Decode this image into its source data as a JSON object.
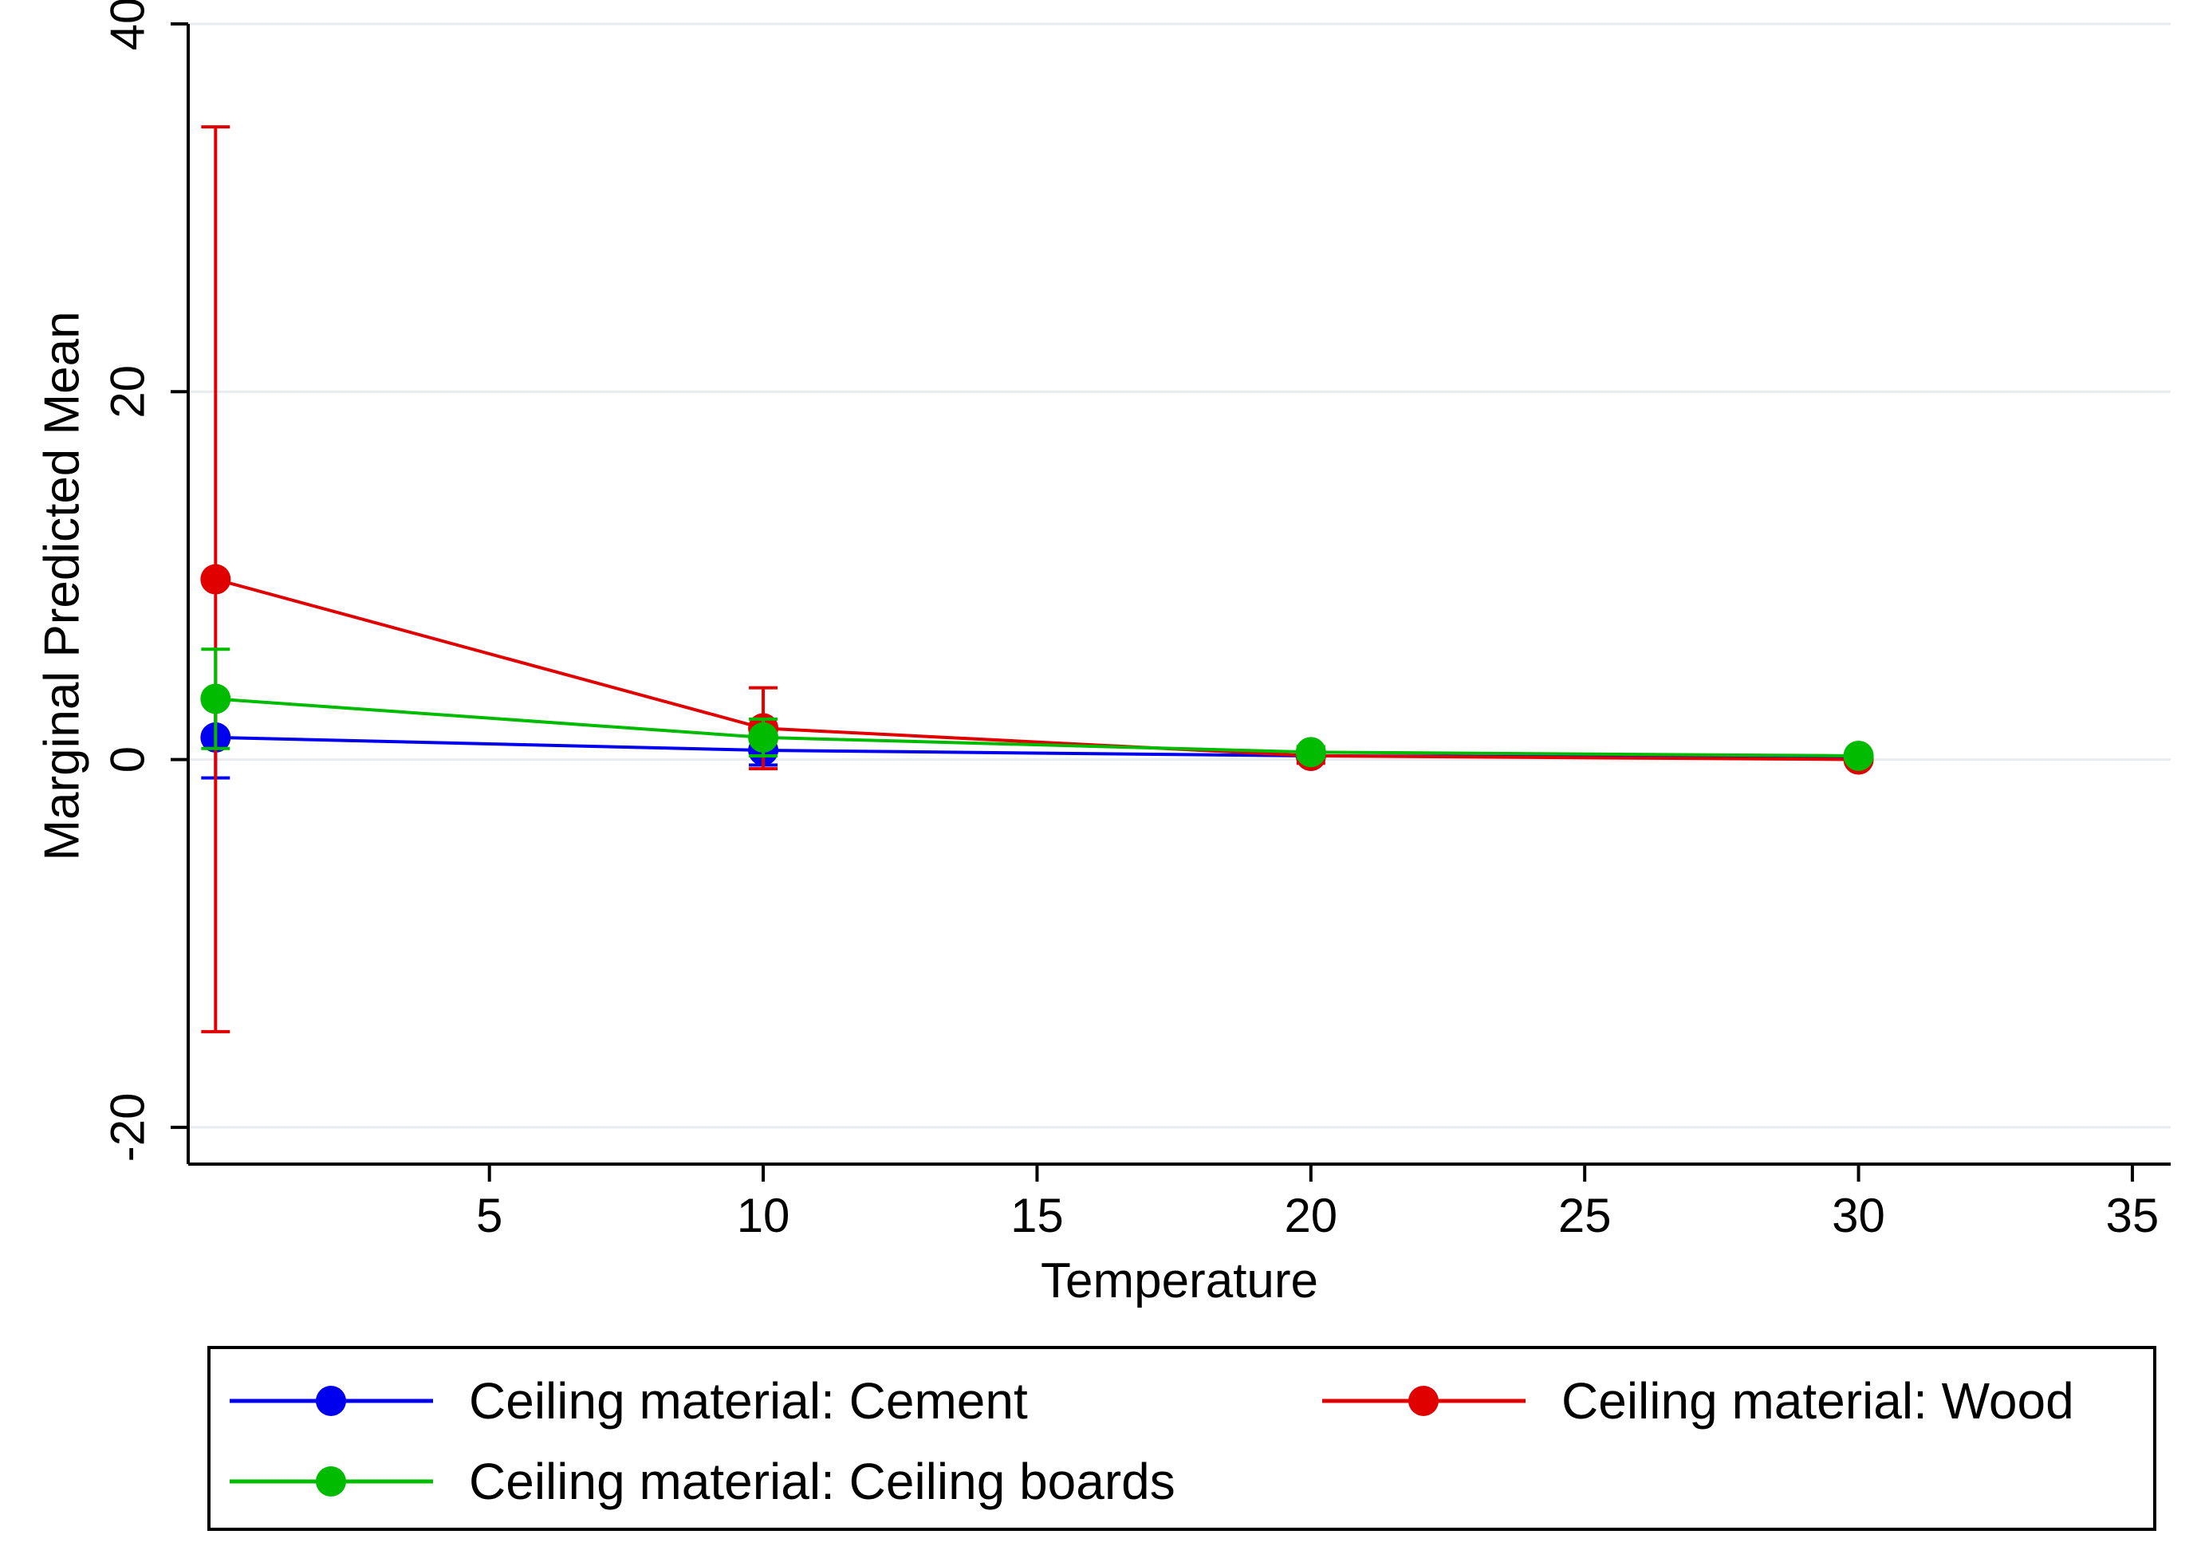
{
  "chart_data": {
    "type": "line",
    "title": "",
    "xlabel": "Temperature",
    "ylabel": "Marginal Predicted Mean",
    "xlim": [
      -0.5,
      35.7
    ],
    "ylim": [
      -22,
      40
    ],
    "xticks": [
      5,
      10,
      15,
      20,
      25,
      30,
      35
    ],
    "yticks": [
      -20,
      0,
      20,
      40
    ],
    "grid": "horizontal",
    "legend_position": "bottom",
    "series": [
      {
        "name": "Ceiling material: Cement",
        "color": "#0000ee",
        "x": [
          0,
          10,
          20,
          30
        ],
        "y": [
          1.2,
          0.5,
          0.2,
          0.1
        ],
        "ci_low": [
          -1.0,
          -0.3,
          0.0,
          0.0
        ],
        "ci_high": [
          3.4,
          1.3,
          0.4,
          0.2
        ]
      },
      {
        "name": "Ceiling material: Wood",
        "color": "#e00000",
        "x": [
          0,
          10,
          20,
          30
        ],
        "y": [
          9.8,
          1.7,
          0.2,
          0.0
        ],
        "ci_low": [
          -14.8,
          -0.5,
          -0.2,
          -0.2
        ],
        "ci_high": [
          34.4,
          3.9,
          0.6,
          0.2
        ]
      },
      {
        "name": "Ceiling material: Ceiling boards",
        "color": "#00bb00",
        "x": [
          0,
          10,
          20,
          30
        ],
        "y": [
          3.3,
          1.2,
          0.4,
          0.2
        ],
        "ci_low": [
          0.6,
          0.2,
          0.1,
          0.0
        ],
        "ci_high": [
          6.0,
          2.2,
          0.7,
          0.4
        ]
      }
    ]
  }
}
